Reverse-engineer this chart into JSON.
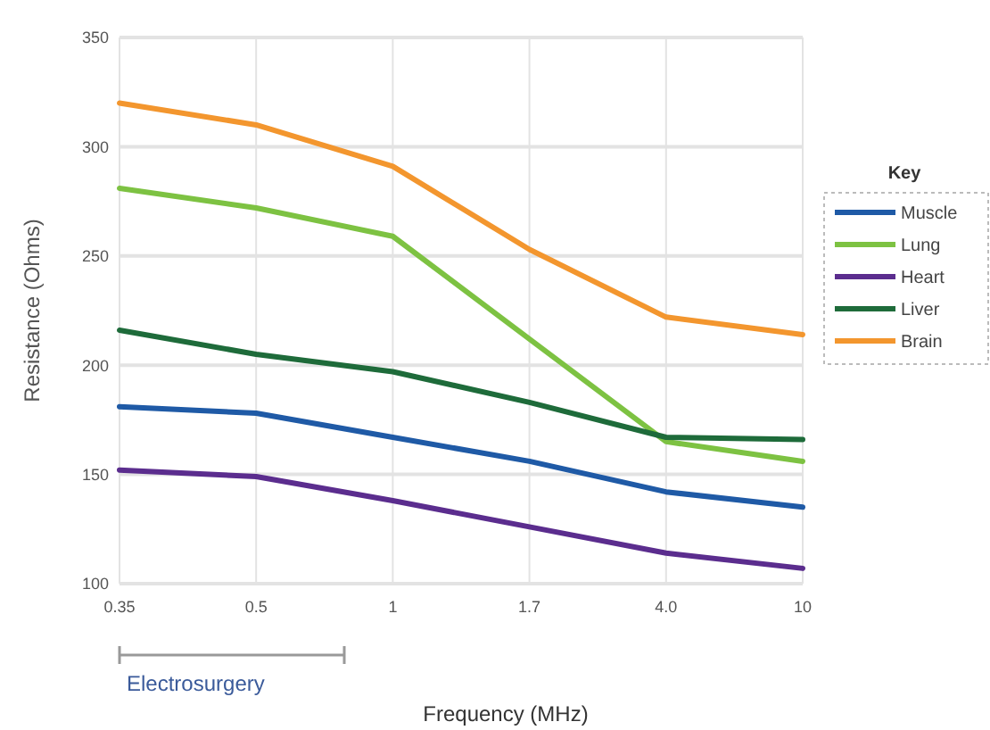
{
  "chart_data": {
    "type": "line",
    "xlabel": "Frequency (MHz)",
    "ylabel": "Resistance (Ohms)",
    "legend_title": "Key",
    "legend": "right",
    "grid": true,
    "categories": [
      "0.35",
      "0.5",
      "1",
      "1.7",
      "4.0",
      "10"
    ],
    "ylim": [
      100,
      350
    ],
    "yticks": [
      100,
      150,
      200,
      250,
      300,
      350
    ],
    "annotations": [
      "Electrosurgery"
    ],
    "series": [
      {
        "name": "Muscle",
        "color": "#1f5aa6",
        "values": [
          181,
          178,
          167,
          156,
          142,
          135
        ]
      },
      {
        "name": "Lung",
        "color": "#7dc242",
        "values": [
          281,
          272,
          259,
          212,
          165,
          156
        ]
      },
      {
        "name": "Heart",
        "color": "#5b2d8e",
        "values": [
          152,
          149,
          138,
          126,
          114,
          107
        ]
      },
      {
        "name": "Liver",
        "color": "#1e6b3a",
        "values": [
          216,
          205,
          197,
          183,
          167,
          166
        ]
      },
      {
        "name": "Brain",
        "color": "#f3962e",
        "values": [
          320,
          310,
          291,
          253,
          222,
          214
        ]
      }
    ]
  }
}
